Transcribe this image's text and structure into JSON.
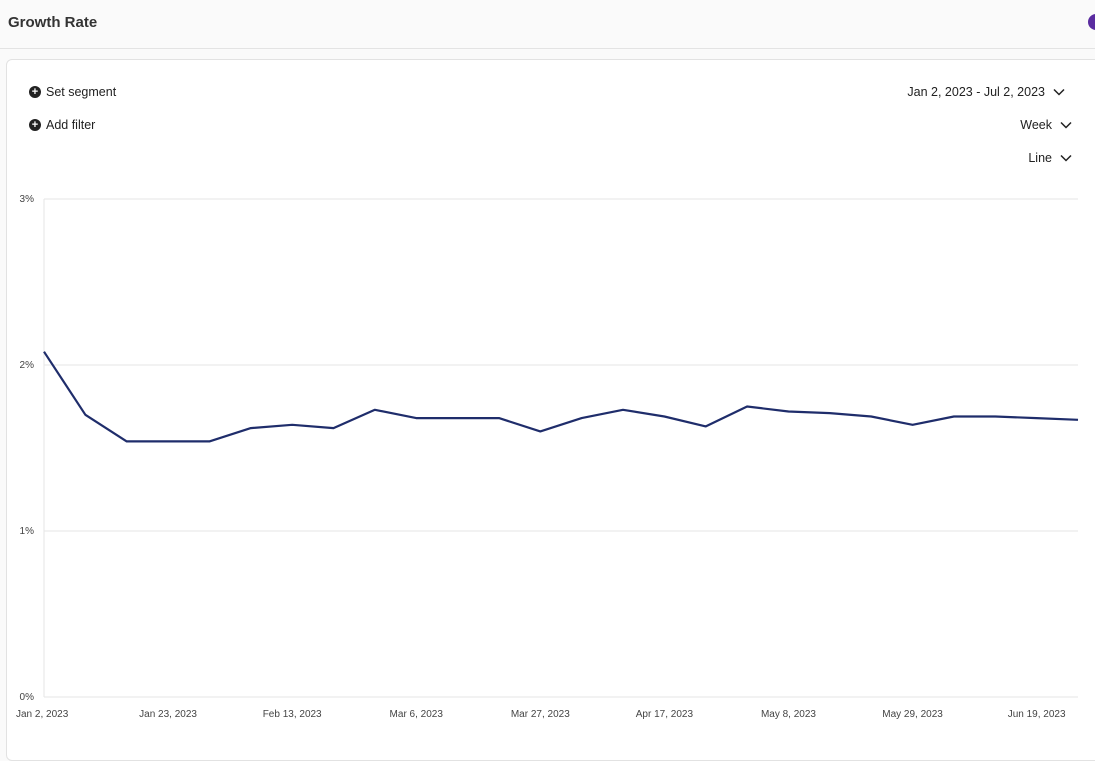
{
  "header": {
    "title": "Growth Rate"
  },
  "controls": {
    "set_segment": "Set segment",
    "add_filter": "Add filter",
    "date_range": "Jan 2, 2023 - Jul 2, 2023",
    "interval": "Week",
    "chart_type": "Line"
  },
  "colors": {
    "line": "#1f2d6b",
    "grid": "#e6e6e6",
    "accent": "#5a2ca0"
  },
  "chart_data": {
    "type": "line",
    "title": "",
    "xlabel": "",
    "ylabel": "",
    "ylim": [
      0,
      3
    ],
    "y_ticks": [
      "0%",
      "1%",
      "2%",
      "3%"
    ],
    "x_tick_labels": [
      "Jan 2, 2023",
      "Jan 23, 2023",
      "Feb 13, 2023",
      "Mar 6, 2023",
      "Mar 27, 2023",
      "Apr 17, 2023",
      "May 8, 2023",
      "May 29, 2023",
      "Jun 19, 2023"
    ],
    "grid": true,
    "series": [
      {
        "x": [
          "Jan 2, 2023",
          "Jan 9, 2023",
          "Jan 16, 2023",
          "Jan 23, 2023",
          "Jan 30, 2023",
          "Feb 6, 2023",
          "Feb 13, 2023",
          "Feb 20, 2023",
          "Feb 27, 2023",
          "Mar 6, 2023",
          "Mar 13, 2023",
          "Mar 20, 2023",
          "Mar 27, 2023",
          "Apr 3, 2023",
          "Apr 10, 2023",
          "Apr 17, 2023",
          "Apr 24, 2023",
          "May 1, 2023",
          "May 8, 2023",
          "May 15, 2023",
          "May 22, 2023",
          "May 29, 2023",
          "Jun 5, 2023",
          "Jun 12, 2023",
          "Jun 19, 2023",
          "Jun 26, 2023"
        ],
        "values": [
          2.08,
          1.7,
          1.54,
          1.54,
          1.54,
          1.62,
          1.64,
          1.62,
          1.73,
          1.68,
          1.68,
          1.68,
          1.6,
          1.68,
          1.73,
          1.69,
          1.63,
          1.75,
          1.72,
          1.71,
          1.69,
          1.64,
          1.69,
          1.69,
          1.68,
          1.67
        ]
      }
    ]
  }
}
